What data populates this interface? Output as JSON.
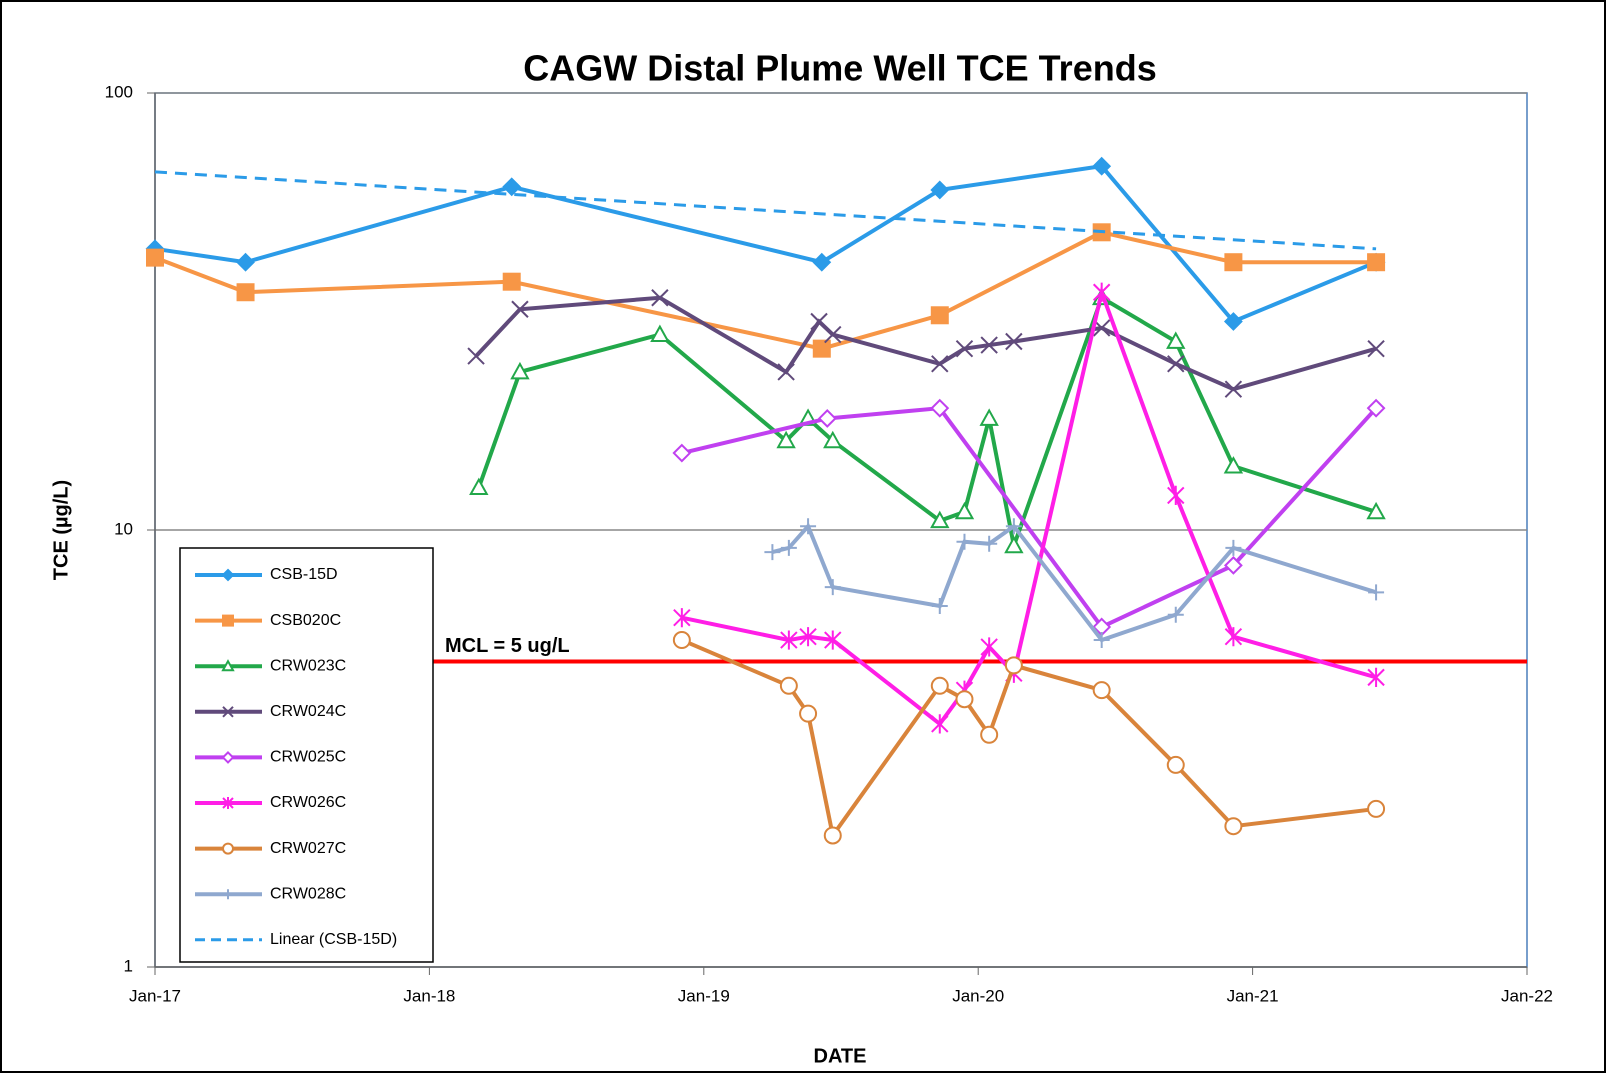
{
  "chart_data": {
    "type": "line",
    "title": "CAGW Distal Plume Well TCE Trends",
    "xlabel": "DATE",
    "ylabel": "TCE  (µg/L)",
    "xlim": [
      2017,
      2022
    ],
    "xticks": [
      {
        "value": 2017,
        "label": "Jan-17"
      },
      {
        "value": 2018,
        "label": "Jan-18"
      },
      {
        "value": 2019,
        "label": "Jan-19"
      },
      {
        "value": 2020,
        "label": "Jan-20"
      },
      {
        "value": 2021,
        "label": "Jan-21"
      },
      {
        "value": 2022,
        "label": "Jan-22"
      }
    ],
    "ylim": [
      1,
      100
    ],
    "yticks": [
      1,
      10,
      100
    ],
    "log_y": true,
    "grid": true,
    "legend": "lower left",
    "mcl": {
      "value": 5,
      "label": "MCL = 5 ug/L",
      "color": "#ff0000"
    },
    "series": [
      {
        "name": "CSB-15D",
        "color": "#2b9be8",
        "marker": "diamond",
        "x": [
          2017.0,
          2017.33,
          2018.3,
          2019.43,
          2019.86,
          2020.45,
          2020.93,
          2021.45
        ],
        "values": [
          44,
          41,
          61,
          41,
          60,
          68,
          30,
          41
        ]
      },
      {
        "name": "CSB020C",
        "color": "#f79646",
        "marker": "square",
        "x": [
          2017.0,
          2017.33,
          2018.3,
          2019.43,
          2019.86,
          2020.45,
          2020.93,
          2021.45
        ],
        "values": [
          42,
          35,
          37,
          26,
          31,
          48,
          41,
          41
        ]
      },
      {
        "name": "CRW023C",
        "color": "#22a84a",
        "marker": "triangle-open",
        "x": [
          2018.18,
          2018.33,
          2018.84,
          2019.3,
          2019.38,
          2019.47,
          2019.86,
          2019.95,
          2020.04,
          2020.13,
          2020.45,
          2020.72,
          2020.93,
          2021.45
        ],
        "values": [
          12.5,
          23,
          28,
          16,
          18,
          16,
          10.5,
          11,
          18,
          9.2,
          34,
          27,
          14,
          11
        ]
      },
      {
        "name": "CRW024C",
        "color": "#604a7b",
        "marker": "x",
        "x": [
          2018.17,
          2018.33,
          2018.84,
          2019.3,
          2019.42,
          2019.47,
          2019.86,
          2019.95,
          2020.04,
          2020.13,
          2020.45,
          2020.72,
          2020.93,
          2021.45
        ],
        "values": [
          25,
          32,
          34,
          23,
          30,
          28,
          24,
          26,
          26.5,
          27,
          29,
          24,
          21,
          26
        ]
      },
      {
        "name": "CRW025C",
        "color": "#c040f0",
        "marker": "diamond-open",
        "x": [
          2018.92,
          2019.45,
          2019.86,
          2020.45,
          2020.93,
          2021.45
        ],
        "values": [
          15,
          18,
          19,
          6,
          8.3,
          19
        ]
      },
      {
        "name": "CRW026C",
        "color": "#ff1ee6",
        "marker": "asterisk",
        "x": [
          2018.92,
          2019.31,
          2019.38,
          2019.47,
          2019.86,
          2019.95,
          2020.04,
          2020.13,
          2020.45,
          2020.72,
          2020.93,
          2021.45
        ],
        "values": [
          6.3,
          5.6,
          5.7,
          5.6,
          3.6,
          4.3,
          5.4,
          4.7,
          35,
          12,
          5.7,
          4.6
        ]
      },
      {
        "name": "CRW027C",
        "color": "#d9843b",
        "marker": "circle-open",
        "x": [
          2018.92,
          2019.31,
          2019.38,
          2019.47,
          2019.86,
          2019.95,
          2020.04,
          2020.13,
          2020.45,
          2020.72,
          2020.93,
          2021.45
        ],
        "values": [
          5.6,
          4.4,
          3.8,
          2.0,
          4.4,
          4.1,
          3.4,
          4.9,
          4.3,
          2.9,
          2.1,
          2.3
        ]
      },
      {
        "name": "CRW028C",
        "color": "#8fa8cf",
        "marker": "plus",
        "x": [
          2019.25,
          2019.31,
          2019.38,
          2019.47,
          2019.86,
          2019.95,
          2020.04,
          2020.13,
          2020.45,
          2020.72,
          2020.93,
          2021.45
        ],
        "values": [
          8.9,
          9.1,
          10.2,
          7.4,
          6.7,
          9.4,
          9.3,
          10.2,
          5.6,
          6.4,
          9.1,
          7.2
        ]
      },
      {
        "name": "Linear (CSB-15D)",
        "color": "#2b9be8",
        "dashed": true,
        "x": [
          2017.0,
          2021.45
        ],
        "values": [
          66,
          44
        ]
      }
    ]
  }
}
